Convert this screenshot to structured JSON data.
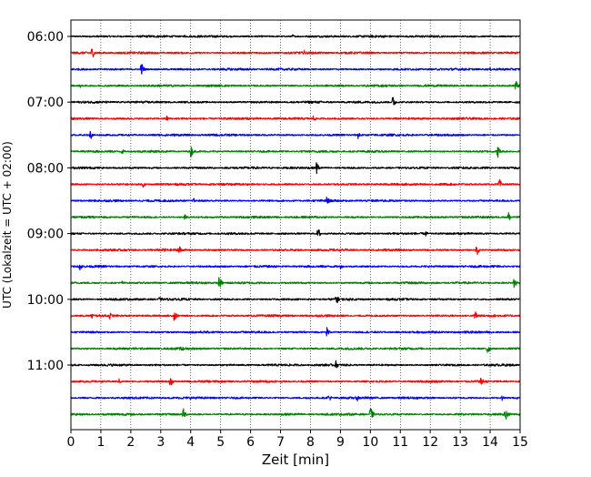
{
  "chart_data": {
    "type": "line",
    "subtype": "helicorder",
    "title": "",
    "xlabel": "Zeit  [min]",
    "ylabel": "UTC (Lokalzeit = UTC + 02:00)",
    "xlim": [
      0,
      15
    ],
    "x_ticks": [
      0,
      1,
      2,
      3,
      4,
      5,
      6,
      7,
      8,
      9,
      10,
      11,
      12,
      13,
      14,
      15
    ],
    "x_tick_labels": [
      "0",
      "1",
      "2",
      "3",
      "4",
      "5",
      "6",
      "7",
      "8",
      "9",
      "10",
      "11",
      "12",
      "13",
      "14",
      "15"
    ],
    "y_tick_labels": [
      "06:00",
      "07:00",
      "08:00",
      "09:00",
      "10:00",
      "11:00"
    ],
    "lines_per_hour": 4,
    "minutes_per_line": 15,
    "grid": "vertical dotted lines at every minute",
    "color_cycle": [
      "#000000",
      "#ff0000",
      "#0000ff",
      "#008000"
    ],
    "traces": [
      {
        "start": "06:00",
        "color": "#000000",
        "events": [
          {
            "t": 3.8,
            "amp": 0.2
          },
          {
            "t": 7.4,
            "amp": 0.25
          },
          {
            "t": 9.1,
            "amp": 0.2
          }
        ]
      },
      {
        "start": "06:15",
        "color": "#ff0000",
        "events": [
          {
            "t": 0.7,
            "amp": 0.75
          },
          {
            "t": 7.8,
            "amp": 0.3
          }
        ]
      },
      {
        "start": "06:30",
        "color": "#0000ff",
        "events": [
          {
            "t": 2.35,
            "amp": 0.9
          },
          {
            "t": 14.0,
            "amp": 0.2
          }
        ]
      },
      {
        "start": "06:45",
        "color": "#008000",
        "events": [
          {
            "t": 0.3,
            "amp": 0.3
          },
          {
            "t": 14.85,
            "amp": 0.75
          }
        ]
      },
      {
        "start": "07:00",
        "color": "#000000",
        "events": [
          {
            "t": 10.75,
            "amp": 0.8
          }
        ]
      },
      {
        "start": "07:15",
        "color": "#ff0000",
        "events": [
          {
            "t": 3.2,
            "amp": 0.35
          },
          {
            "t": 8.1,
            "amp": 0.45
          }
        ]
      },
      {
        "start": "07:30",
        "color": "#0000ff",
        "events": [
          {
            "t": 0.65,
            "amp": 0.6
          },
          {
            "t": 9.6,
            "amp": 0.6
          }
        ]
      },
      {
        "start": "07:45",
        "color": "#008000",
        "events": [
          {
            "t": 1.7,
            "amp": 0.35
          },
          {
            "t": 4.0,
            "amp": 0.75
          },
          {
            "t": 14.25,
            "amp": 0.8
          }
        ]
      },
      {
        "start": "08:00",
        "color": "#000000",
        "events": [
          {
            "t": 8.2,
            "amp": 0.8
          }
        ]
      },
      {
        "start": "08:15",
        "color": "#ff0000",
        "events": [
          {
            "t": 2.4,
            "amp": 0.4
          },
          {
            "t": 14.3,
            "amp": 0.75
          }
        ]
      },
      {
        "start": "08:30",
        "color": "#0000ff",
        "events": [
          {
            "t": 4.1,
            "amp": 0.3
          },
          {
            "t": 8.55,
            "amp": 0.6
          }
        ]
      },
      {
        "start": "08:45",
        "color": "#008000",
        "events": [
          {
            "t": 3.8,
            "amp": 0.3
          },
          {
            "t": 14.6,
            "amp": 0.75
          }
        ]
      },
      {
        "start": "09:00",
        "color": "#000000",
        "events": [
          {
            "t": 8.25,
            "amp": 0.8
          },
          {
            "t": 11.85,
            "amp": 0.35
          }
        ]
      },
      {
        "start": "09:15",
        "color": "#ff0000",
        "events": [
          {
            "t": 3.1,
            "amp": 0.4
          },
          {
            "t": 3.6,
            "amp": 0.7
          },
          {
            "t": 13.55,
            "amp": 0.75
          }
        ]
      },
      {
        "start": "09:30",
        "color": "#0000ff",
        "events": [
          {
            "t": 0.3,
            "amp": 0.5
          },
          {
            "t": 9.0,
            "amp": 0.3
          }
        ]
      },
      {
        "start": "09:45",
        "color": "#008000",
        "events": [
          {
            "t": 1.7,
            "amp": 0.3
          },
          {
            "t": 4.95,
            "amp": 0.85
          },
          {
            "t": 14.8,
            "amp": 0.8
          }
        ]
      },
      {
        "start": "10:00",
        "color": "#000000",
        "events": [
          {
            "t": 2.95,
            "amp": 0.3
          },
          {
            "t": 8.85,
            "amp": 0.8
          }
        ]
      },
      {
        "start": "10:15",
        "color": "#ff0000",
        "events": [
          {
            "t": 0.7,
            "amp": 0.4
          },
          {
            "t": 1.3,
            "amp": 0.4
          },
          {
            "t": 3.45,
            "amp": 0.75
          },
          {
            "t": 13.5,
            "amp": 0.75
          }
        ]
      },
      {
        "start": "10:30",
        "color": "#0000ff",
        "events": [
          {
            "t": 8.55,
            "amp": 0.6
          }
        ]
      },
      {
        "start": "10:45",
        "color": "#008000",
        "events": [
          {
            "t": 3.7,
            "amp": 0.5
          },
          {
            "t": 13.9,
            "amp": 0.85
          }
        ]
      },
      {
        "start": "11:00",
        "color": "#000000",
        "events": [
          {
            "t": 8.85,
            "amp": 0.5
          }
        ]
      },
      {
        "start": "11:15",
        "color": "#ff0000",
        "events": [
          {
            "t": 1.6,
            "amp": 0.35
          },
          {
            "t": 3.3,
            "amp": 0.8
          },
          {
            "t": 13.7,
            "amp": 0.6
          }
        ]
      },
      {
        "start": "11:30",
        "color": "#0000ff",
        "events": [
          {
            "t": 8.6,
            "amp": 0.6
          },
          {
            "t": 9.55,
            "amp": 0.45
          },
          {
            "t": 14.4,
            "amp": 0.3
          }
        ]
      },
      {
        "start": "11:45",
        "color": "#008000",
        "events": [
          {
            "t": 3.75,
            "amp": 0.75
          },
          {
            "t": 10.0,
            "amp": 1.0
          },
          {
            "t": 14.5,
            "amp": 0.8
          }
        ]
      }
    ]
  }
}
